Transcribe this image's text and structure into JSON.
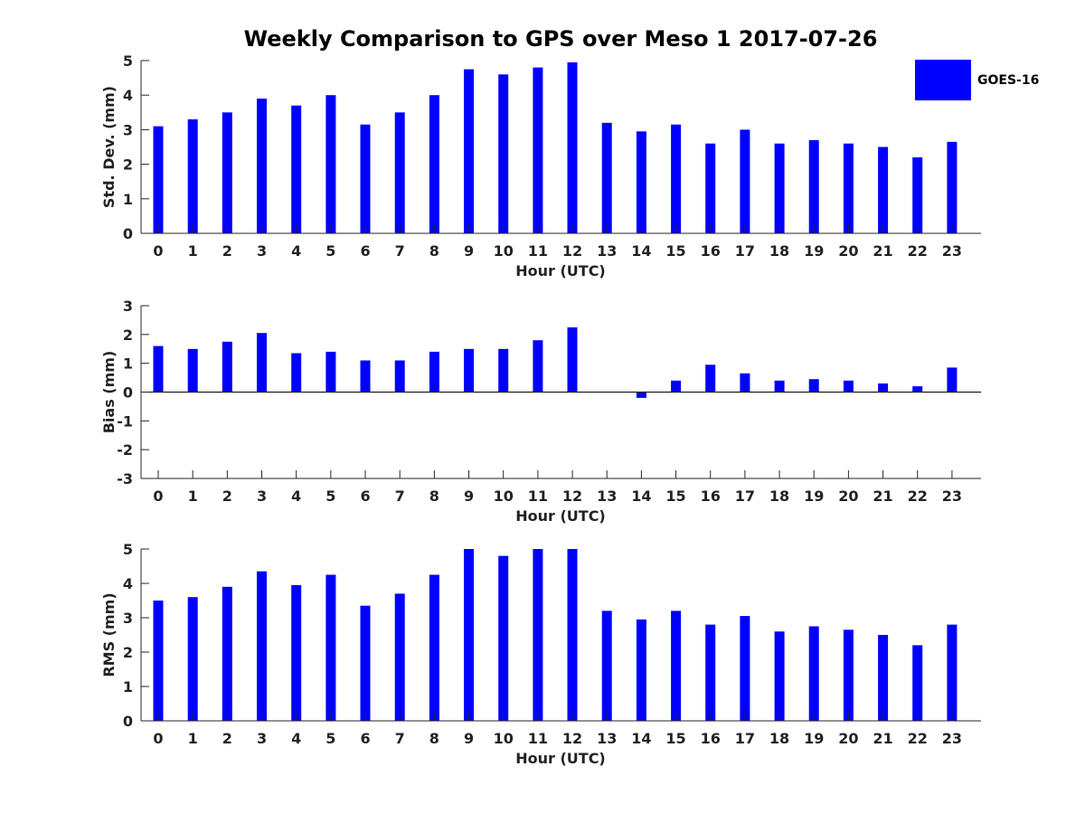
{
  "title": "Weekly Comparison to GPS over Meso 1 2017-07-26",
  "legend": {
    "label": "GOES-16",
    "color": "#0000ff"
  },
  "chart_data": [
    {
      "type": "bar",
      "title": "Weekly Comparison to GPS over Meso 1 2017-07-26",
      "xlabel": "Hour (UTC)",
      "ylabel": "Std. Dev. (mm)",
      "categories": [
        "0",
        "1",
        "2",
        "3",
        "4",
        "5",
        "6",
        "7",
        "8",
        "9",
        "10",
        "11",
        "12",
        "13",
        "14",
        "15",
        "16",
        "17",
        "18",
        "19",
        "20",
        "21",
        "22",
        "23"
      ],
      "ylim": [
        0,
        5
      ],
      "yticks": [
        "0",
        "1",
        "2",
        "3",
        "4",
        "5"
      ],
      "series": [
        {
          "name": "GOES-16",
          "values": [
            3.1,
            3.3,
            3.5,
            3.9,
            3.7,
            4.0,
            3.15,
            3.5,
            4.0,
            4.75,
            4.6,
            4.8,
            4.95,
            3.2,
            2.95,
            3.15,
            2.6,
            3.0,
            2.6,
            2.7,
            2.6,
            2.5,
            2.2,
            2.65
          ]
        }
      ]
    },
    {
      "type": "bar",
      "xlabel": "Hour (UTC)",
      "ylabel": "Bias (mm)",
      "categories": [
        "0",
        "1",
        "2",
        "3",
        "4",
        "5",
        "6",
        "7",
        "8",
        "9",
        "10",
        "11",
        "12",
        "13",
        "14",
        "15",
        "16",
        "17",
        "18",
        "19",
        "20",
        "21",
        "22",
        "23"
      ],
      "ylim": [
        -3,
        3
      ],
      "yticks": [
        "-3",
        "-2",
        "-1",
        "0",
        "1",
        "2",
        "3"
      ],
      "series": [
        {
          "name": "GOES-16",
          "values": [
            1.6,
            1.5,
            1.75,
            2.05,
            1.35,
            1.4,
            1.1,
            1.1,
            1.4,
            1.5,
            1.5,
            1.8,
            2.25,
            0,
            -0.2,
            0.4,
            0.95,
            0.65,
            0.4,
            0.45,
            0.4,
            0.3,
            0.2,
            0.85
          ]
        }
      ]
    },
    {
      "type": "bar",
      "xlabel": "Hour (UTC)",
      "ylabel": "RMS (mm)",
      "categories": [
        "0",
        "1",
        "2",
        "3",
        "4",
        "5",
        "6",
        "7",
        "8",
        "9",
        "10",
        "11",
        "12",
        "13",
        "14",
        "15",
        "16",
        "17",
        "18",
        "19",
        "20",
        "21",
        "22",
        "23"
      ],
      "ylim": [
        0,
        5
      ],
      "yticks": [
        "0",
        "1",
        "2",
        "3",
        "4",
        "5"
      ],
      "series": [
        {
          "name": "GOES-16",
          "values": [
            3.5,
            3.6,
            3.9,
            4.35,
            3.95,
            4.25,
            3.35,
            3.7,
            4.25,
            5.0,
            4.8,
            5.0,
            5.0,
            3.2,
            2.95,
            3.2,
            2.8,
            3.05,
            2.6,
            2.75,
            2.65,
            2.5,
            2.2,
            2.8
          ]
        }
      ]
    }
  ]
}
